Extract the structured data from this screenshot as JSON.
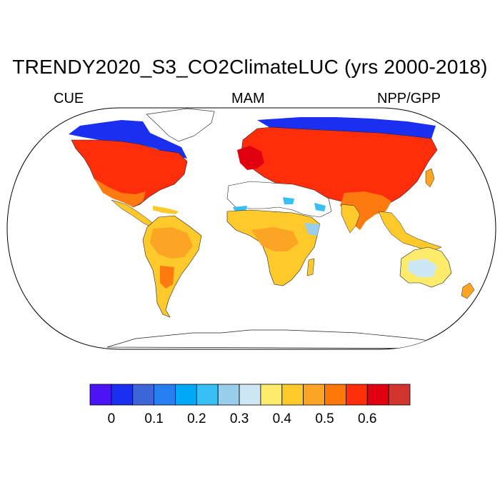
{
  "title": "TRENDY2020_S3_CO2ClimateLUC (yrs 2000-2018)",
  "left_label": "CUE",
  "center_label": "MAM",
  "right_label": "NPP/GPP",
  "map": {
    "projection": "Robinson",
    "region": "global",
    "variable": "NPP/GPP",
    "land_outline_color": "#000000",
    "ocean_color": "#ffffff"
  },
  "colorbar": {
    "colors": [
      "#4b14f5",
      "#1a2ff0",
      "#3c65d8",
      "#2780f0",
      "#00a8f8",
      "#38c0f5",
      "#98cdeb",
      "#cde7f5",
      "#fdeb6c",
      "#fdc92b",
      "#fca524",
      "#fd7809",
      "#ff2d0a",
      "#e0000f",
      "#d2342e"
    ],
    "tick_labels": [
      "0",
      "0.1",
      "0.2",
      "0.3",
      "0.4",
      "0.5",
      "0.6"
    ],
    "tick_values": [
      0,
      0.1,
      0.2,
      0.3,
      0.4,
      0.5,
      0.6
    ]
  }
}
